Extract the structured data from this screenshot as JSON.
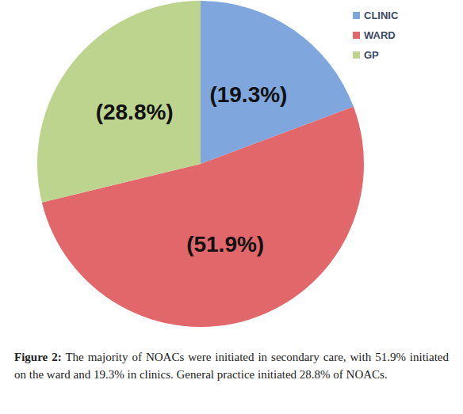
{
  "chart_data": {
    "type": "pie",
    "categories": [
      "CLINIC",
      "WARD",
      "GP"
    ],
    "values": [
      19.3,
      51.9,
      28.8
    ],
    "value_labels": [
      "(19.3%)",
      "(51.9%)",
      "(28.8%)"
    ],
    "colors": [
      "#7fa7de",
      "#e2676b",
      "#bcd48e"
    ],
    "data_labels": true,
    "legend": "top-right",
    "caption": {
      "label": "Figure 2:",
      "text": "The majority of NOACs were initiated in secondary care, with 51.9% initiated on the ward and 19.3% in clinics. General practice initiated 28.8% of NOACs."
    }
  }
}
